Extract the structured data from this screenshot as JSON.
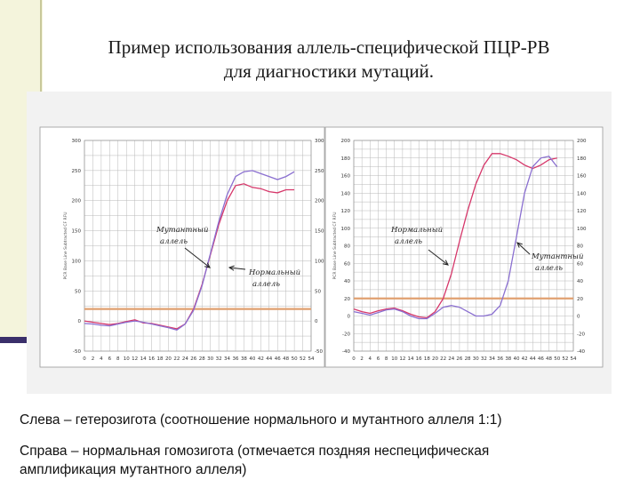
{
  "title_line1": "Пример использования аллель-специфической ПЦР-РВ",
  "title_line2": "для диагностики мутаций.",
  "caption_line1": "Слева – гетерозигота (соотношение нормального и мутантного аллеля 1:1)",
  "caption_line2": "Справа – нормальная гомозигота (отмечается поздняя неспецифическая",
  "caption_line3": "амплификация мутантного аллеля)",
  "colors": {
    "red": "#d6376a",
    "purple": "#8a6fd0",
    "threshold": "#e0a070",
    "grid": "#b8b8b8"
  },
  "chart_data": [
    {
      "type": "line",
      "ylabel": "PCR Base Line Subtracted CF RFU",
      "ylim": [
        -50,
        300
      ],
      "yticks": [
        -50,
        0,
        50,
        100,
        150,
        200,
        250,
        300
      ],
      "xticks": [
        0,
        2,
        4,
        6,
        8,
        10,
        12,
        14,
        16,
        18,
        20,
        22,
        24,
        26,
        28,
        30,
        32,
        34,
        36,
        38,
        40,
        42,
        44,
        46,
        48,
        50,
        52,
        54
      ],
      "threshold": 20,
      "annotations": [
        {
          "line1": "Мутантный",
          "line2": "аллель"
        },
        {
          "line1": "Нормальный",
          "line2": "аллель"
        }
      ],
      "series": [
        {
          "color": "red",
          "x": [
            0,
            2,
            4,
            6,
            8,
            10,
            12,
            14,
            16,
            18,
            20,
            22,
            24,
            26,
            28,
            30,
            32,
            34,
            36,
            38,
            40,
            42,
            44,
            46,
            48,
            50
          ],
          "y": [
            0,
            -2,
            -4,
            -6,
            -4,
            -1,
            2,
            -3,
            -4,
            -7,
            -10,
            -13,
            -5,
            20,
            60,
            110,
            160,
            200,
            225,
            228,
            222,
            220,
            215,
            213,
            218,
            218
          ]
        },
        {
          "color": "purple",
          "x": [
            0,
            2,
            4,
            6,
            8,
            10,
            12,
            14,
            16,
            18,
            20,
            22,
            24,
            26,
            28,
            30,
            32,
            34,
            36,
            38,
            40,
            42,
            44,
            46,
            48,
            50
          ],
          "y": [
            -4,
            -5,
            -7,
            -8,
            -5,
            -2,
            0,
            -2,
            -5,
            -8,
            -11,
            -15,
            -5,
            18,
            58,
            112,
            165,
            210,
            240,
            248,
            250,
            245,
            240,
            235,
            240,
            248
          ]
        }
      ]
    },
    {
      "type": "line",
      "ylabel": "PCR Base Line Subtracted CF RFU",
      "ylim": [
        -40,
        200
      ],
      "yticks": [
        -40,
        -20,
        0,
        20,
        40,
        60,
        80,
        100,
        120,
        140,
        160,
        180,
        200
      ],
      "xticks": [
        0,
        2,
        4,
        6,
        8,
        10,
        12,
        14,
        16,
        18,
        20,
        22,
        24,
        26,
        28,
        30,
        32,
        34,
        36,
        38,
        40,
        42,
        44,
        46,
        48,
        50,
        52,
        54
      ],
      "threshold": 20,
      "annotations": [
        {
          "line1": "Нормальный",
          "line2": "аллель"
        },
        {
          "line1": "Мутантный",
          "line2": "аллель"
        }
      ],
      "series": [
        {
          "color": "red",
          "x": [
            0,
            2,
            4,
            6,
            8,
            10,
            12,
            14,
            16,
            18,
            20,
            22,
            24,
            26,
            28,
            30,
            32,
            34,
            36,
            38,
            40,
            42,
            44,
            46,
            48,
            50
          ],
          "y": [
            8,
            5,
            3,
            6,
            8,
            9,
            6,
            2,
            -1,
            -2,
            5,
            20,
            48,
            85,
            120,
            150,
            172,
            185,
            185,
            182,
            178,
            172,
            168,
            172,
            178,
            180
          ]
        },
        {
          "color": "purple",
          "x": [
            0,
            2,
            4,
            6,
            8,
            10,
            12,
            14,
            16,
            18,
            20,
            22,
            24,
            26,
            28,
            30,
            32,
            34,
            36,
            38,
            40,
            42,
            44,
            46,
            48,
            50
          ],
          "y": [
            5,
            3,
            1,
            4,
            7,
            8,
            5,
            0,
            -3,
            -3,
            3,
            10,
            12,
            10,
            5,
            0,
            0,
            2,
            12,
            40,
            90,
            140,
            170,
            180,
            182,
            170
          ]
        }
      ]
    }
  ]
}
